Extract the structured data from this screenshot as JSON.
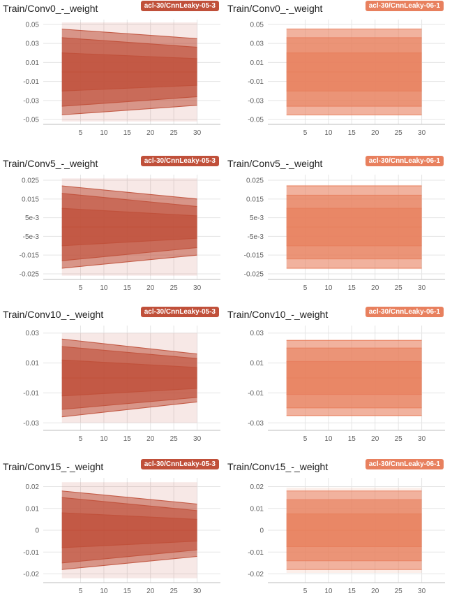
{
  "panels": [
    {
      "title": "Train/Conv0_-_weight",
      "run": "acl-30/CnnLeaky-05-3",
      "color": "#c0503a"
    },
    {
      "title": "Train/Conv0_-_weight",
      "run": "acl-30/CnnLeaky-06-1",
      "color": "#e8805e"
    },
    {
      "title": "Train/Conv5_-_weight",
      "run": "acl-30/CnnLeaky-05-3",
      "color": "#c0503a"
    },
    {
      "title": "Train/Conv5_-_weight",
      "run": "acl-30/CnnLeaky-06-1",
      "color": "#e8805e"
    },
    {
      "title": "Train/Conv10_-_weight",
      "run": "acl-30/CnnLeaky-05-3",
      "color": "#c0503a"
    },
    {
      "title": "Train/Conv10_-_weight",
      "run": "acl-30/CnnLeaky-06-1",
      "color": "#e8805e"
    },
    {
      "title": "Train/Conv15_-_weight",
      "run": "acl-30/CnnLeaky-05-3",
      "color": "#c0503a"
    },
    {
      "title": "Train/Conv15_-_weight",
      "run": "acl-30/CnnLeaky-06-1",
      "color": "#e8805e"
    }
  ],
  "chart_data": [
    {
      "type": "area",
      "title": "Train/Conv0_-_weight",
      "series_name": "acl-30/CnnLeaky-05-3",
      "x": [
        1,
        30
      ],
      "xlim": [
        -3,
        35
      ],
      "ylim": [
        -0.055,
        0.055
      ],
      "xticks": [
        5,
        10,
        15,
        20,
        25,
        30
      ],
      "yticks": [
        0.05,
        0.03,
        0.01,
        -0.01,
        -0.03,
        -0.05
      ],
      "ytick_labels": [
        "0.05",
        "0.03",
        "0.01",
        "-0.01",
        "-0.03",
        "-0.05"
      ],
      "percentiles": {
        "p0": [
          -0.052,
          -0.052
        ],
        "p7": [
          -0.045,
          -0.035
        ],
        "p16": [
          -0.036,
          -0.026
        ],
        "p31": [
          -0.02,
          -0.014
        ],
        "p50": [
          0.0,
          0.0
        ],
        "p69": [
          0.02,
          0.014
        ],
        "p84": [
          0.036,
          0.026
        ],
        "p93": [
          0.045,
          0.035
        ],
        "p100": [
          0.052,
          0.052
        ]
      }
    },
    {
      "type": "area",
      "title": "Train/Conv0_-_weight",
      "series_name": "acl-30/CnnLeaky-06-1",
      "x": [
        1,
        30
      ],
      "xlim": [
        -3,
        35
      ],
      "ylim": [
        -0.055,
        0.055
      ],
      "xticks": [
        5,
        10,
        15,
        20,
        25,
        30
      ],
      "yticks": [
        0.05,
        0.03,
        0.01,
        -0.01,
        -0.03,
        -0.05
      ],
      "ytick_labels": [
        "0.05",
        "0.03",
        "0.01",
        "-0.01",
        "-0.03",
        "-0.05"
      ],
      "percentiles": {
        "p0": [
          -0.046,
          -0.046
        ],
        "p7": [
          -0.045,
          -0.045
        ],
        "p16": [
          -0.036,
          -0.036
        ],
        "p31": [
          -0.02,
          -0.02
        ],
        "p50": [
          0.0,
          0.0
        ],
        "p69": [
          0.02,
          0.02
        ],
        "p84": [
          0.036,
          0.036
        ],
        "p93": [
          0.045,
          0.045
        ],
        "p100": [
          0.046,
          0.046
        ]
      }
    },
    {
      "type": "area",
      "title": "Train/Conv5_-_weight",
      "series_name": "acl-30/CnnLeaky-05-3",
      "x": [
        1,
        30
      ],
      "xlim": [
        -3,
        35
      ],
      "ylim": [
        -0.028,
        0.028
      ],
      "xticks": [
        5,
        10,
        15,
        20,
        25,
        30
      ],
      "yticks": [
        0.025,
        0.015,
        0.005,
        -0.005,
        -0.015,
        -0.025
      ],
      "ytick_labels": [
        "0.025",
        "0.015",
        "5e-3",
        "-5e-3",
        "-0.015",
        "-0.025"
      ],
      "percentiles": {
        "p0": [
          -0.026,
          -0.026
        ],
        "p7": [
          -0.022,
          -0.015
        ],
        "p16": [
          -0.018,
          -0.011
        ],
        "p31": [
          -0.01,
          -0.006
        ],
        "p50": [
          0.0,
          0.0
        ],
        "p69": [
          0.01,
          0.006
        ],
        "p84": [
          0.018,
          0.011
        ],
        "p93": [
          0.022,
          0.015
        ],
        "p100": [
          0.026,
          0.026
        ]
      }
    },
    {
      "type": "area",
      "title": "Train/Conv5_-_weight",
      "series_name": "acl-30/CnnLeaky-06-1",
      "x": [
        1,
        30
      ],
      "xlim": [
        -3,
        35
      ],
      "ylim": [
        -0.028,
        0.028
      ],
      "xticks": [
        5,
        10,
        15,
        20,
        25,
        30
      ],
      "yticks": [
        0.025,
        0.015,
        0.005,
        -0.005,
        -0.015,
        -0.025
      ],
      "ytick_labels": [
        "0.025",
        "0.015",
        "5e-3",
        "-5e-3",
        "-0.015",
        "-0.025"
      ],
      "percentiles": {
        "p0": [
          -0.0225,
          -0.0225
        ],
        "p7": [
          -0.022,
          -0.022
        ],
        "p16": [
          -0.017,
          -0.017
        ],
        "p31": [
          -0.01,
          -0.01
        ],
        "p50": [
          0.0,
          0.0
        ],
        "p69": [
          0.01,
          0.01
        ],
        "p84": [
          0.017,
          0.017
        ],
        "p93": [
          0.022,
          0.022
        ],
        "p100": [
          0.0225,
          0.0225
        ]
      }
    },
    {
      "type": "area",
      "title": "Train/Conv10_-_weight",
      "series_name": "acl-30/CnnLeaky-05-3",
      "x": [
        1,
        30
      ],
      "xlim": [
        -3,
        35
      ],
      "ylim": [
        -0.035,
        0.035
      ],
      "xticks": [
        5,
        10,
        15,
        20,
        25,
        30
      ],
      "yticks": [
        0.03,
        0.01,
        -0.01,
        -0.03
      ],
      "ytick_labels": [
        "0.03",
        "0.01",
        "-0.01",
        "-0.03"
      ],
      "percentiles": {
        "p0": [
          -0.03,
          -0.03
        ],
        "p7": [
          -0.026,
          -0.016
        ],
        "p16": [
          -0.021,
          -0.013
        ],
        "p31": [
          -0.012,
          -0.007
        ],
        "p50": [
          0.0,
          0.0
        ],
        "p69": [
          0.012,
          0.007
        ],
        "p84": [
          0.021,
          0.013
        ],
        "p93": [
          0.026,
          0.016
        ],
        "p100": [
          0.03,
          0.03
        ]
      }
    },
    {
      "type": "area",
      "title": "Train/Conv10_-_weight",
      "series_name": "acl-30/CnnLeaky-06-1",
      "x": [
        1,
        30
      ],
      "xlim": [
        -3,
        35
      ],
      "ylim": [
        -0.035,
        0.035
      ],
      "xticks": [
        5,
        10,
        15,
        20,
        25,
        30
      ],
      "yticks": [
        0.03,
        0.01,
        -0.01,
        -0.03
      ],
      "ytick_labels": [
        "0.03",
        "0.01",
        "-0.01",
        "-0.03"
      ],
      "percentiles": {
        "p0": [
          -0.026,
          -0.026
        ],
        "p7": [
          -0.025,
          -0.025
        ],
        "p16": [
          -0.02,
          -0.02
        ],
        "p31": [
          -0.011,
          -0.011
        ],
        "p50": [
          0.0,
          0.0
        ],
        "p69": [
          0.011,
          0.011
        ],
        "p84": [
          0.02,
          0.02
        ],
        "p93": [
          0.025,
          0.025
        ],
        "p100": [
          0.026,
          0.026
        ]
      }
    },
    {
      "type": "area",
      "title": "Train/Conv15_-_weight",
      "series_name": "acl-30/CnnLeaky-05-3",
      "x": [
        1,
        30
      ],
      "xlim": [
        -3,
        35
      ],
      "ylim": [
        -0.024,
        0.024
      ],
      "xticks": [
        5,
        10,
        15,
        20,
        25,
        30
      ],
      "yticks": [
        0.02,
        0.01,
        0,
        -0.01,
        -0.02
      ],
      "ytick_labels": [
        "0.02",
        "0.01",
        "0",
        "-0.01",
        "-0.02"
      ],
      "percentiles": {
        "p0": [
          -0.022,
          -0.022
        ],
        "p7": [
          -0.018,
          -0.012
        ],
        "p16": [
          -0.015,
          -0.009
        ],
        "p31": [
          -0.008,
          -0.005
        ],
        "p50": [
          0.0,
          0.0
        ],
        "p69": [
          0.008,
          0.005
        ],
        "p84": [
          0.015,
          0.009
        ],
        "p93": [
          0.018,
          0.012
        ],
        "p100": [
          0.022,
          0.022
        ]
      }
    },
    {
      "type": "area",
      "title": "Train/Conv15_-_weight",
      "series_name": "acl-30/CnnLeaky-06-1",
      "x": [
        1,
        30
      ],
      "xlim": [
        -3,
        35
      ],
      "ylim": [
        -0.024,
        0.024
      ],
      "xticks": [
        5,
        10,
        15,
        20,
        25,
        30
      ],
      "yticks": [
        0.02,
        0.01,
        0,
        -0.01,
        -0.02
      ],
      "ytick_labels": [
        "0.02",
        "0.01",
        "0",
        "-0.01",
        "-0.02"
      ],
      "percentiles": {
        "p0": [
          -0.0195,
          -0.0195
        ],
        "p7": [
          -0.018,
          -0.018
        ],
        "p16": [
          -0.014,
          -0.014
        ],
        "p31": [
          -0.0075,
          -0.0075
        ],
        "p50": [
          0.0,
          0.0
        ],
        "p69": [
          0.0075,
          0.0075
        ],
        "p84": [
          0.014,
          0.014
        ],
        "p93": [
          0.018,
          0.018
        ],
        "p100": [
          0.0195,
          0.0195
        ]
      }
    }
  ]
}
